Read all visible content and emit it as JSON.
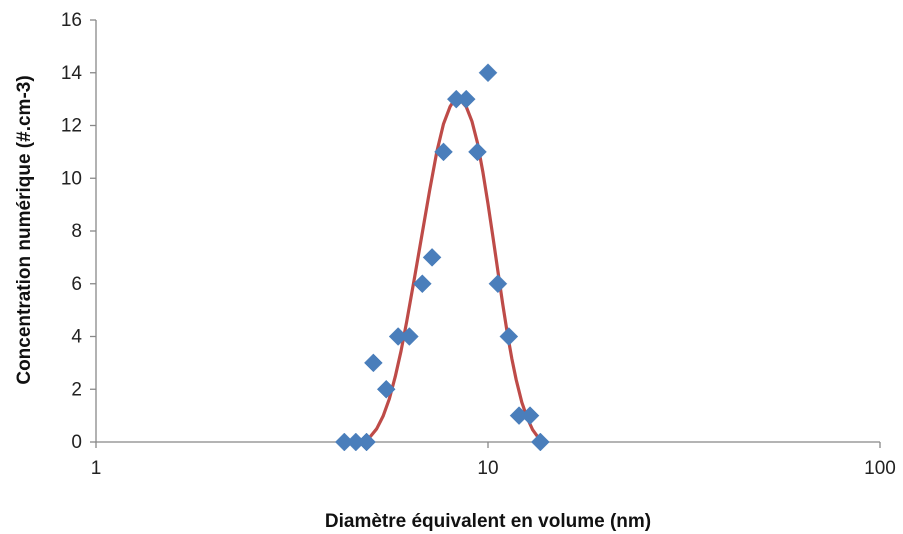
{
  "chart_data": {
    "type": "scatter",
    "title": "",
    "xlabel": "Diamètre équivalent en volume (nm)",
    "ylabel": "Concentration numérique (#.cm-3)",
    "xscale": "log",
    "xlim": [
      1,
      100
    ],
    "ylim": [
      0,
      16
    ],
    "x_ticks": [
      1,
      10,
      100
    ],
    "x_tick_labels": [
      "1",
      "10",
      "100"
    ],
    "y_ticks": [
      0,
      2,
      4,
      6,
      8,
      10,
      12,
      14,
      16
    ],
    "y_tick_labels": [
      "0",
      "2",
      "4",
      "6",
      "8",
      "10",
      "12",
      "14",
      "16"
    ],
    "grid": false,
    "legend": "none",
    "series": [
      {
        "kind": "scatter",
        "marker": "diamond",
        "color": "#4a7ebb",
        "points": [
          {
            "x": 4.3,
            "y": 0
          },
          {
            "x": 4.6,
            "y": 0
          },
          {
            "x": 4.9,
            "y": 0
          },
          {
            "x": 5.1,
            "y": 3
          },
          {
            "x": 5.5,
            "y": 2
          },
          {
            "x": 5.9,
            "y": 4
          },
          {
            "x": 6.3,
            "y": 4
          },
          {
            "x": 6.8,
            "y": 6
          },
          {
            "x": 7.2,
            "y": 7
          },
          {
            "x": 7.7,
            "y": 11
          },
          {
            "x": 8.3,
            "y": 13
          },
          {
            "x": 8.8,
            "y": 13
          },
          {
            "x": 9.4,
            "y": 11
          },
          {
            "x": 10.0,
            "y": 14
          },
          {
            "x": 10.6,
            "y": 6
          },
          {
            "x": 11.3,
            "y": 4
          },
          {
            "x": 12.0,
            "y": 1
          },
          {
            "x": 12.8,
            "y": 1
          },
          {
            "x": 13.6,
            "y": 0
          }
        ]
      },
      {
        "kind": "line",
        "color": "#be4b48",
        "points": [
          {
            "x": 4.6,
            "y": 0.01
          },
          {
            "x": 4.8,
            "y": 0.06
          },
          {
            "x": 5.0,
            "y": 0.19
          },
          {
            "x": 5.2,
            "y": 0.5
          },
          {
            "x": 5.4,
            "y": 0.98
          },
          {
            "x": 5.6,
            "y": 1.63
          },
          {
            "x": 5.8,
            "y": 2.48
          },
          {
            "x": 6.0,
            "y": 3.45
          },
          {
            "x": 6.2,
            "y": 4.55
          },
          {
            "x": 6.5,
            "y": 6.26
          },
          {
            "x": 6.8,
            "y": 7.94
          },
          {
            "x": 7.1,
            "y": 9.55
          },
          {
            "x": 7.4,
            "y": 10.99
          },
          {
            "x": 7.7,
            "y": 12.06
          },
          {
            "x": 8.0,
            "y": 12.71
          },
          {
            "x": 8.2,
            "y": 12.96
          },
          {
            "x": 8.35,
            "y": 13.0
          },
          {
            "x": 8.5,
            "y": 12.96
          },
          {
            "x": 8.8,
            "y": 12.71
          },
          {
            "x": 9.1,
            "y": 12.16
          },
          {
            "x": 9.4,
            "y": 11.34
          },
          {
            "x": 9.7,
            "y": 10.25
          },
          {
            "x": 10.0,
            "y": 9.03
          },
          {
            "x": 10.3,
            "y": 7.75
          },
          {
            "x": 10.6,
            "y": 6.47
          },
          {
            "x": 10.9,
            "y": 5.24
          },
          {
            "x": 11.2,
            "y": 4.13
          },
          {
            "x": 11.5,
            "y": 3.17
          },
          {
            "x": 11.8,
            "y": 2.36
          },
          {
            "x": 12.2,
            "y": 1.5
          },
          {
            "x": 12.6,
            "y": 0.9
          },
          {
            "x": 13.0,
            "y": 0.46
          },
          {
            "x": 13.4,
            "y": 0.19
          },
          {
            "x": 13.8,
            "y": 0.06
          },
          {
            "x": 14.0,
            "y": 0.01
          }
        ]
      }
    ]
  }
}
